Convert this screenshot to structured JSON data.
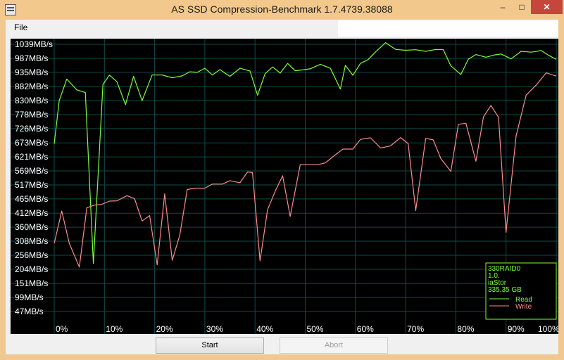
{
  "window": {
    "title": "AS SSD Compression-Benchmark 1.7.4739.38088",
    "min_glyph": "–",
    "max_glyph": "□",
    "close_glyph": "✕"
  },
  "menu": {
    "file": "File"
  },
  "buttons": {
    "start": "Start",
    "abort": "Abort"
  },
  "info_box": {
    "lines": [
      "330RAID0",
      "1.0.",
      "iaStor",
      "335,35 GB"
    ],
    "legend": [
      {
        "label": "Read",
        "color": "#7dff3a"
      },
      {
        "label": "Write",
        "color": "#ff8a8a"
      }
    ]
  },
  "colors": {
    "plot_bg": "#000000",
    "grid": "#0f4a48",
    "axis_text": "#ffffff",
    "info_text": "#7dff3a",
    "read": "#7dff3a",
    "write": "#ff8a8a"
  },
  "chart_data": {
    "type": "line",
    "x_unit": "% compressibility",
    "y_unit": "MB/s",
    "ylim": [
      0,
      1060
    ],
    "xlim": [
      0,
      100
    ],
    "y_ticks": [
      {
        "label": "1039MB/s",
        "value": 1039
      },
      {
        "label": "987MB/s",
        "value": 987
      },
      {
        "label": "935MB/s",
        "value": 935
      },
      {
        "label": "882MB/s",
        "value": 882
      },
      {
        "label": "830MB/s",
        "value": 830
      },
      {
        "label": "778MB/s",
        "value": 778
      },
      {
        "label": "726MB/s",
        "value": 726
      },
      {
        "label": "673MB/s",
        "value": 673
      },
      {
        "label": "621MB/s",
        "value": 621
      },
      {
        "label": "569MB/s",
        "value": 569
      },
      {
        "label": "517MB/s",
        "value": 517
      },
      {
        "label": "465MB/s",
        "value": 465
      },
      {
        "label": "412MB/s",
        "value": 412
      },
      {
        "label": "360MB/s",
        "value": 360
      },
      {
        "label": "308MB/s",
        "value": 308
      },
      {
        "label": "256MB/s",
        "value": 256
      },
      {
        "label": "204MB/s",
        "value": 204
      },
      {
        "label": "151MB/s",
        "value": 151
      },
      {
        "label": "99MB/s",
        "value": 99
      },
      {
        "label": "47MB/s",
        "value": 47
      }
    ],
    "x_ticks": [
      {
        "label": "0%",
        "value": 0
      },
      {
        "label": "10%",
        "value": 10
      },
      {
        "label": "20%",
        "value": 20
      },
      {
        "label": "30%",
        "value": 30
      },
      {
        "label": "40%",
        "value": 40
      },
      {
        "label": "50%",
        "value": 50
      },
      {
        "label": "60%",
        "value": 60
      },
      {
        "label": "70%",
        "value": 70
      },
      {
        "label": "80%",
        "value": 80
      },
      {
        "label": "90%",
        "value": 90
      },
      {
        "label": "100%",
        "value": 100
      }
    ],
    "series": [
      {
        "name": "Read",
        "x": [
          0,
          1,
          2.5,
          4.5,
          6.2,
          7.8,
          9.7,
          11,
          12.5,
          14.2,
          15.8,
          17.5,
          19.5,
          21.5,
          23.5,
          25.5,
          27,
          28.5,
          30,
          31.5,
          33,
          35,
          37,
          39,
          40.5,
          42,
          43.5,
          45,
          46.5,
          48,
          49.5,
          51,
          53,
          55,
          57,
          58,
          59.5,
          61,
          62.5,
          64,
          66,
          68,
          70,
          72,
          74,
          76,
          77.5,
          79,
          81,
          82.5,
          84,
          86,
          87.5,
          89,
          91,
          93,
          95,
          97,
          98.5,
          100
        ],
        "y": [
          670,
          830,
          910,
          870,
          860,
          225,
          890,
          925,
          900,
          815,
          920,
          830,
          925,
          925,
          915,
          922,
          937,
          935,
          950,
          925,
          945,
          920,
          950,
          940,
          850,
          930,
          955,
          932,
          968,
          941,
          944,
          948,
          965,
          950,
          873,
          961,
          924,
          968,
          982,
          1011,
          1045,
          1020,
          1017,
          1019,
          1013,
          1020,
          1019,
          959,
          927,
          984,
          1001,
          991,
          999,
          1003,
          985,
          1013,
          1010,
          1016,
          998,
          983
        ]
      },
      {
        "name": "Write",
        "x": [
          0,
          1.5,
          3,
          5,
          6.5,
          8,
          9.5,
          11,
          12.5,
          14.5,
          16,
          17.5,
          19,
          20.5,
          22,
          23.5,
          25,
          26.5,
          28,
          30,
          31.5,
          33.5,
          35,
          37,
          38.5,
          39.5,
          41,
          42.5,
          44,
          45.5,
          47,
          49,
          51,
          52.5,
          54,
          56,
          57.5,
          59.5,
          61,
          63,
          65,
          67,
          69,
          70.5,
          72,
          74,
          75.5,
          77,
          79,
          80.5,
          82,
          84,
          85.5,
          87,
          88.5,
          90,
          92,
          94,
          96,
          98,
          100
        ],
        "y": [
          300,
          420,
          300,
          212,
          432,
          442,
          445,
          457,
          458,
          477,
          466,
          383,
          403,
          220,
          484,
          237,
          330,
          500,
          505,
          505,
          520,
          520,
          533,
          525,
          565,
          563,
          235,
          425,
          493,
          551,
          400,
          592,
          592,
          592,
          599,
          629,
          650,
          650,
          686,
          692,
          654,
          662,
          693,
          670,
          422,
          690,
          684,
          615,
          567,
          742,
          746,
          605,
          770,
          812,
          768,
          341,
          699,
          850,
          888,
          933,
          921
        ]
      }
    ]
  }
}
